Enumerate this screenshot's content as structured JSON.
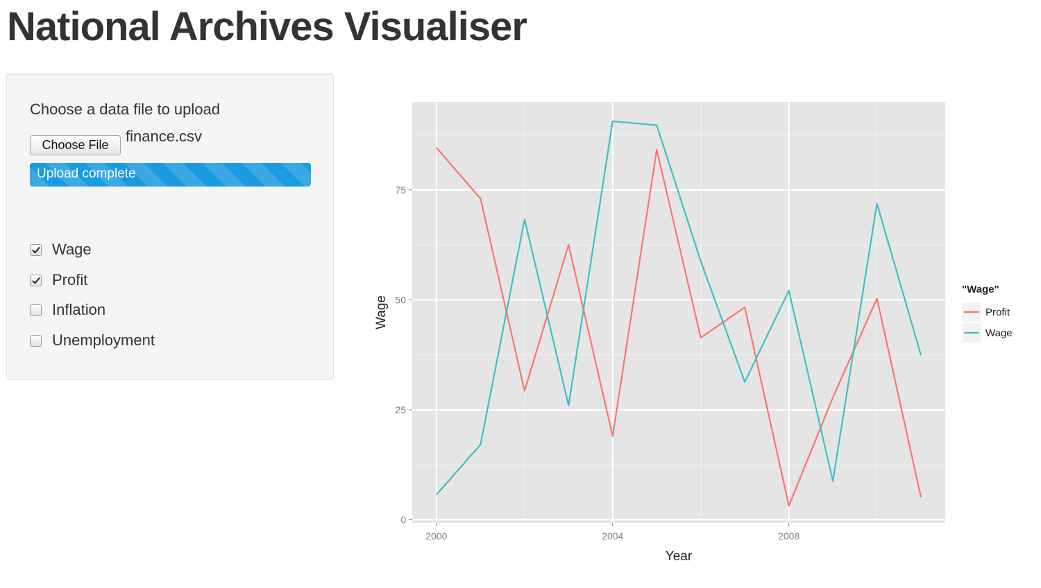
{
  "page": {
    "title": "National Archives Visualiser"
  },
  "sidebar": {
    "upload_label": "Choose a data file to upload",
    "choose_file_label": "Choose File",
    "file_name": "finance.csv",
    "progress": {
      "text": "Upload complete",
      "percent": 100,
      "color": "#1a9ae0"
    },
    "checkboxes": [
      {
        "label": "Wage",
        "checked": true
      },
      {
        "label": "Profit",
        "checked": true
      },
      {
        "label": "Inflation",
        "checked": false
      },
      {
        "label": "Unemployment",
        "checked": false
      }
    ]
  },
  "chart_data": {
    "type": "line",
    "xlabel": "Year",
    "ylabel": "Wage",
    "xlim": [
      1999.45,
      2011.55
    ],
    "ylim": [
      -0.7,
      95
    ],
    "x_ticks": [
      2000,
      2004,
      2008
    ],
    "y_ticks": [
      0,
      25,
      50,
      75
    ],
    "grid": true,
    "legend": {
      "title": "\"Wage\"",
      "placement": "right",
      "entries": [
        "Profit",
        "Wage"
      ]
    },
    "x": [
      2000,
      2001,
      2002,
      2003,
      2004,
      2005,
      2006,
      2007,
      2008,
      2009,
      2010,
      2011
    ],
    "series": [
      {
        "name": "Profit",
        "color": "#f8766d",
        "values": [
          84.6,
          73.0,
          29.3,
          62.5,
          19.0,
          84.1,
          41.4,
          48.3,
          3.2,
          27.8,
          50.3,
          5.1
        ]
      },
      {
        "name": "Wage",
        "color": "#3ebfc4",
        "values": [
          5.7,
          17.1,
          68.3,
          26.0,
          90.6,
          89.7,
          58.8,
          31.3,
          52.1,
          8.8,
          71.9,
          37.4
        ]
      }
    ]
  }
}
